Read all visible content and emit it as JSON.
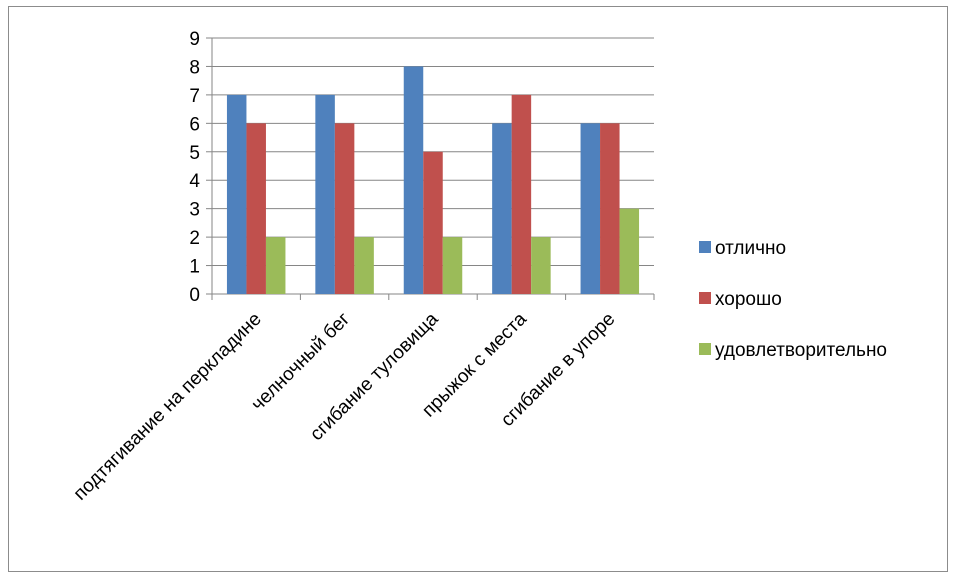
{
  "chart_data": {
    "type": "bar",
    "categories": [
      "подтягивание на перкладине",
      "челночный бег",
      "сгибание туловища",
      "прыжок с места",
      "сгибание в упоре"
    ],
    "series": [
      {
        "name": "отлично",
        "color": "#4f81bd",
        "values": [
          7,
          7,
          8,
          6,
          6
        ]
      },
      {
        "name": "хорошо",
        "color": "#c0504d",
        "values": [
          6,
          6,
          5,
          7,
          6
        ]
      },
      {
        "name": "удовлетворительно",
        "color": "#9bbb59",
        "values": [
          2,
          2,
          2,
          2,
          3
        ]
      }
    ],
    "ylim": [
      0,
      9
    ],
    "yticks": [
      "0",
      "1",
      "2",
      "3",
      "4",
      "5",
      "6",
      "7",
      "8",
      "9"
    ],
    "grid": true,
    "legend": "right"
  }
}
